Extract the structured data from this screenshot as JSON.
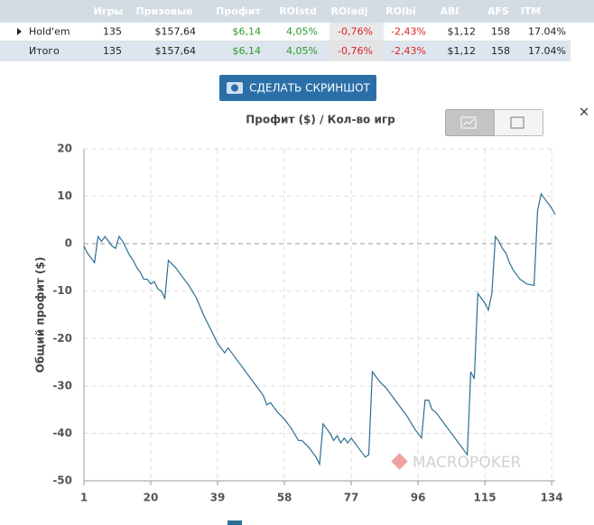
{
  "table": {
    "headers": [
      "Игры",
      "Призовые",
      "Профит",
      "ROIstd",
      "ROIadj",
      "ROIbi",
      "ABI",
      "AFS",
      "ITM"
    ],
    "rows": [
      [
        "Hold'em",
        135,
        "$157,64",
        "$6,14",
        "4,05%",
        "-0,76%",
        "-2,43%",
        "$1,12",
        158,
        "17.04%"
      ],
      [
        "Итого",
        135,
        "$157,64",
        "$6,14",
        "4,05%",
        "-0,76%",
        "-2,43%",
        "$1,12",
        158,
        "17.04%"
      ]
    ]
  },
  "button": "СДЕЛАТЬ СКРИНШОТ",
  "watermark": "MACROPOKER",
  "close": "×",
  "chart_data": {
    "type": "line",
    "title": "Профит ($) / Кол-во игр",
    "y_label": "Общий профит ($)",
    "xlim": [
      1,
      135
    ],
    "xticks": [
      1,
      20,
      39,
      58,
      77,
      96,
      115,
      134
    ],
    "ylim": [
      -50,
      20
    ],
    "yticks": [
      -50,
      -40,
      -30,
      -20,
      -10,
      0,
      10,
      20
    ],
    "grid": true,
    "series": [
      {
        "color": "#2a6f94",
        "x": [
          1,
          2,
          3,
          4,
          5,
          6,
          7,
          8,
          9,
          10,
          11,
          12,
          13,
          14,
          15,
          16,
          17,
          18,
          19,
          20,
          21,
          22,
          23,
          24,
          25,
          27,
          29,
          31,
          33,
          35,
          37,
          39,
          41,
          42,
          44,
          46,
          48,
          50,
          52,
          53,
          54,
          56,
          58,
          60,
          62,
          63,
          65,
          67,
          68,
          69,
          70,
          71,
          72,
          73,
          74,
          75,
          76,
          77,
          79,
          81,
          82,
          83,
          85,
          87,
          89,
          91,
          93,
          95,
          96,
          97,
          98,
          99,
          100,
          101,
          103,
          105,
          107,
          109,
          110,
          111,
          112,
          113,
          114,
          115,
          116,
          117,
          118,
          119,
          120,
          121,
          122,
          123,
          124,
          125,
          126,
          127,
          129,
          130,
          131,
          132,
          133,
          134,
          135
        ],
        "values": [
          -0.5,
          -2,
          -3,
          -4,
          1.5,
          0.5,
          1.5,
          0.5,
          -0.5,
          -1,
          1.5,
          0.5,
          -1,
          -2.5,
          -3.5,
          -5,
          -6,
          -7.5,
          -7.5,
          -8.5,
          -8,
          -9.5,
          -10,
          -11.5,
          -3.5,
          -5,
          -7,
          -9,
          -11.5,
          -15,
          -18,
          -21,
          -23,
          -22,
          -24,
          -26,
          -28,
          -30,
          -32,
          -34,
          -33.5,
          -35.5,
          -37,
          -39,
          -41.5,
          -41.5,
          -43,
          -45,
          -46.5,
          -38,
          -39,
          -40,
          -41.5,
          -40.5,
          -42,
          -41,
          -42,
          -41,
          -43,
          -45,
          -44.5,
          -27,
          -29,
          -30.5,
          -32.5,
          -34.5,
          -36.5,
          -39,
          -40,
          -41,
          -33,
          -33,
          -35,
          -35.5,
          -37.5,
          -39.5,
          -41.5,
          -43.5,
          -44.5,
          -27,
          -28.5,
          -10.5,
          -11.5,
          -12.5,
          -14,
          -10.5,
          1.5,
          0.5,
          -1,
          -2,
          -4,
          -5.5,
          -6.5,
          -7.5,
          -8,
          -8.5,
          -8.8,
          7,
          10.5,
          9.5,
          8.5,
          7.5,
          6.14
        ]
      }
    ]
  }
}
